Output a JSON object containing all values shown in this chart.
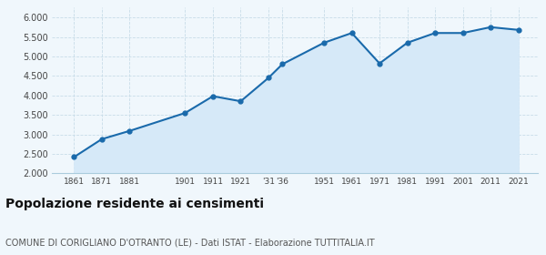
{
  "years": [
    1861,
    1871,
    1881,
    1901,
    1911,
    1921,
    1931,
    1936,
    1951,
    1961,
    1971,
    1981,
    1991,
    2001,
    2011,
    2021
  ],
  "x_labels": [
    "1861",
    "1871",
    "1881",
    "1901",
    "1911",
    "1921",
    "'31",
    "'36",
    "1951",
    "1961",
    "1971",
    "1981",
    "1991",
    "2001",
    "2011",
    "2021"
  ],
  "population": [
    2420,
    2880,
    3090,
    3550,
    3980,
    3850,
    4450,
    4800,
    5350,
    5600,
    4820,
    5350,
    5600,
    5600,
    5750,
    5680
  ],
  "line_color": "#1a6aab",
  "fill_color": "#d6e9f8",
  "marker_color": "#1a6aab",
  "background_color": "#f0f7fc",
  "grid_color": "#c8dce8",
  "title": "Popolazione residente ai censimenti",
  "subtitle": "COMUNE DI CORIGLIANO D'OTRANTO (LE) - Dati ISTAT - Elaborazione TUTTITALIA.IT",
  "ylim": [
    2000,
    6250
  ],
  "yticks": [
    2000,
    2500,
    3000,
    3500,
    4000,
    4500,
    5000,
    5500,
    6000
  ],
  "title_fontsize": 10,
  "subtitle_fontsize": 7.0
}
